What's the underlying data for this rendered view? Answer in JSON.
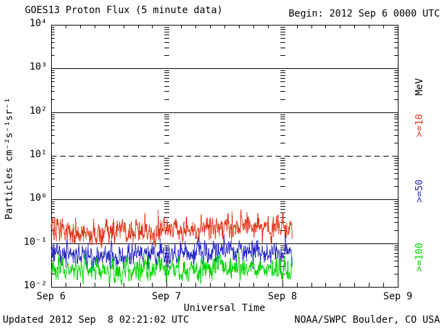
{
  "header": {
    "title": "GOES13 Proton Flux (5 minute data)",
    "begin": "Begin: 2012 Sep 6 0000 UTC"
  },
  "footer": {
    "updated": "Updated 2012 Sep  8 02:21:02 UTC",
    "source": "NOAA/SWPC Boulder, CO USA"
  },
  "chart_data": {
    "type": "line",
    "title": "GOES13 Proton Flux (5 minute data)",
    "xlabel": "Universal Time",
    "ylabel": "Particles cm⁻²s⁻¹sr⁻¹",
    "y_scale": "log",
    "ylim": [
      0.01,
      10000
    ],
    "y_tick_labels": [
      "10⁴",
      "10³",
      "10²",
      "10¹",
      "10⁰",
      "10⁻¹",
      "10⁻²"
    ],
    "y_tick_values": [
      10000,
      1000,
      100,
      10,
      1,
      0.1,
      0.01
    ],
    "x_tick_labels": [
      "Sep 6",
      "Sep 7",
      "Sep 8",
      "Sep 9"
    ],
    "x_minor_interval_hours": 3,
    "grid": {
      "horizontal_decade_lines": "solid",
      "event_threshold_value": 10,
      "event_threshold_style": "dashed"
    },
    "legend_title": "MeV",
    "sample_minutes": 5,
    "end_hours": 50.1,
    "seed": 20120906,
    "series": [
      {
        "name": ">=10",
        "unit": "MeV",
        "color": "#e23a1e",
        "sigma_log": 0.16,
        "min_log": -1.12,
        "max_log": -0.22,
        "trend_hourly": [
          0.26,
          0.23,
          0.21,
          0.2,
          0.19,
          0.18,
          0.175,
          0.17,
          0.165,
          0.17,
          0.175,
          0.17,
          0.165,
          0.17,
          0.175,
          0.18,
          0.175,
          0.17,
          0.175,
          0.18,
          0.185,
          0.18,
          0.185,
          0.19,
          0.19,
          0.195,
          0.2,
          0.2,
          0.205,
          0.21,
          0.21,
          0.215,
          0.22,
          0.225,
          0.23,
          0.235,
          0.25,
          0.26,
          0.265,
          0.26,
          0.255,
          0.25,
          0.245,
          0.24,
          0.235,
          0.23,
          0.225,
          0.22,
          0.215,
          0.21,
          0.21,
          0.21
        ]
      },
      {
        "name": ">=50",
        "unit": "MeV",
        "color": "#2a2ac6",
        "sigma_log": 0.14,
        "min_log": -1.63,
        "max_log": -0.79,
        "trend_hourly": [
          0.065,
          0.062,
          0.06,
          0.058,
          0.056,
          0.055,
          0.054,
          0.053,
          0.052,
          0.053,
          0.054,
          0.053,
          0.052,
          0.053,
          0.054,
          0.055,
          0.054,
          0.053,
          0.054,
          0.055,
          0.056,
          0.055,
          0.056,
          0.057,
          0.057,
          0.058,
          0.058,
          0.059,
          0.059,
          0.06,
          0.06,
          0.061,
          0.061,
          0.062,
          0.062,
          0.063,
          0.064,
          0.065,
          0.065,
          0.064,
          0.063,
          0.062,
          0.062,
          0.061,
          0.06,
          0.06,
          0.059,
          0.059,
          0.058,
          0.058,
          0.057,
          0.057
        ]
      },
      {
        "name": ">=100",
        "unit": "MeV",
        "color": "#00d400",
        "sigma_log": 0.14,
        "min_log": -1.96,
        "max_log": -1.2,
        "trend_hourly": [
          0.028,
          0.027,
          0.026,
          0.025,
          0.025,
          0.024,
          0.024,
          0.023,
          0.023,
          0.023,
          0.024,
          0.023,
          0.023,
          0.023,
          0.024,
          0.024,
          0.024,
          0.023,
          0.024,
          0.024,
          0.025,
          0.024,
          0.025,
          0.025,
          0.025,
          0.025,
          0.026,
          0.026,
          0.026,
          0.026,
          0.027,
          0.027,
          0.027,
          0.027,
          0.028,
          0.028,
          0.028,
          0.029,
          0.029,
          0.028,
          0.028,
          0.027,
          0.027,
          0.027,
          0.026,
          0.026,
          0.026,
          0.026,
          0.025,
          0.025,
          0.025,
          0.025
        ]
      }
    ]
  }
}
